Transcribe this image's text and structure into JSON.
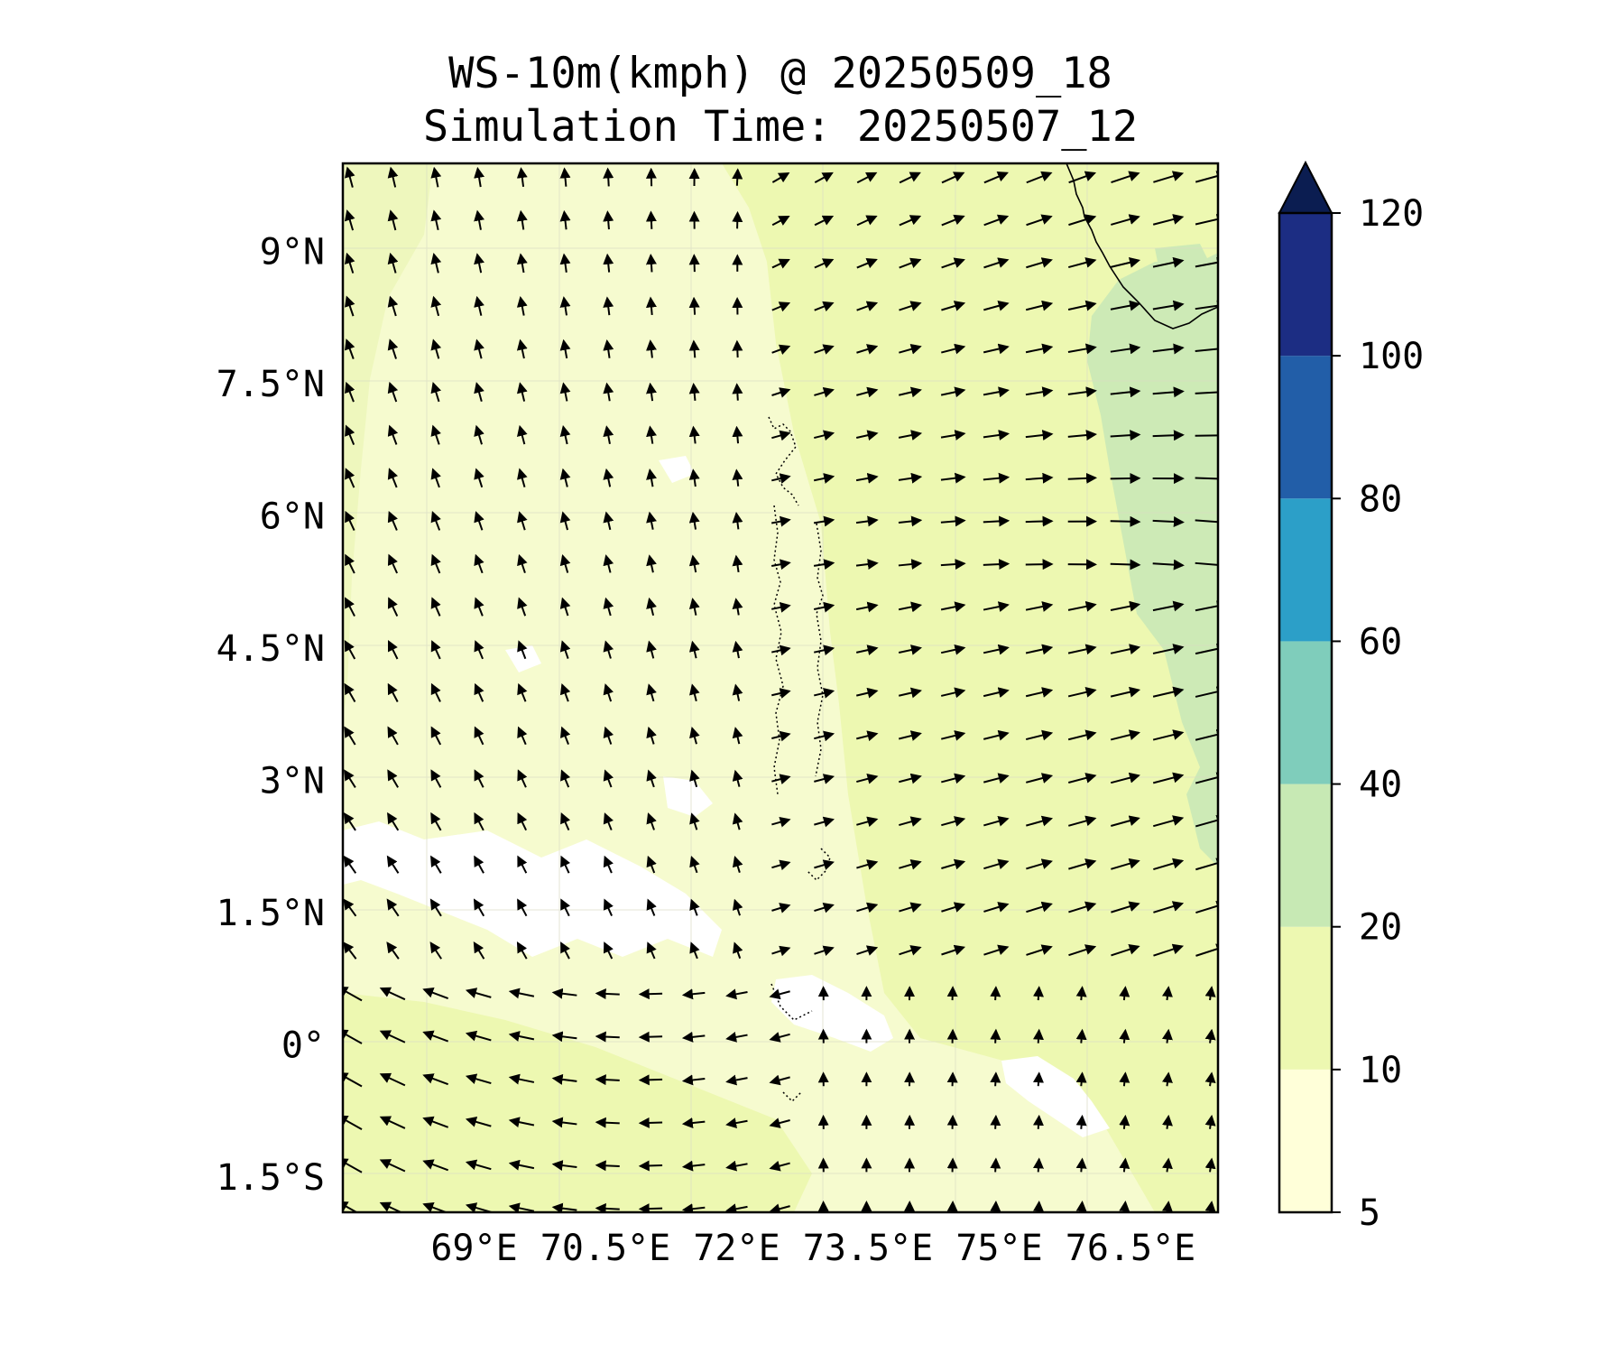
{
  "title": {
    "line1": "WS-10m(kmph) @ 20250509_18",
    "line2": "Simulation Time: 20250507_12"
  },
  "map": {
    "lon_range": [
      67.5,
      77.5
    ],
    "lat_range": [
      -1.9,
      10.0
    ],
    "lon_ticks": [
      {
        "value": 69.0,
        "label": "69°E"
      },
      {
        "value": 70.5,
        "label": "70.5°E"
      },
      {
        "value": 72.0,
        "label": "72°E"
      },
      {
        "value": 73.5,
        "label": "73.5°E"
      },
      {
        "value": 75.0,
        "label": "75°E"
      },
      {
        "value": 76.5,
        "label": "76.5°E"
      }
    ],
    "lat_ticks": [
      {
        "value": 9.0,
        "label": "9°N"
      },
      {
        "value": 7.5,
        "label": "7.5°N"
      },
      {
        "value": 6.0,
        "label": "6°N"
      },
      {
        "value": 4.5,
        "label": "4.5°N"
      },
      {
        "value": 3.0,
        "label": "3°N"
      },
      {
        "value": 1.5,
        "label": "1.5°N"
      },
      {
        "value": 0.0,
        "label": "0°"
      },
      {
        "value": -1.5,
        "label": "1.5°S"
      }
    ],
    "gridlines": true,
    "background_fill": "#f6fbcf",
    "coastline_color": "#000000",
    "vector_color": "#000000"
  },
  "colorbar": {
    "levels": [
      "5",
      "10",
      "20",
      "40",
      "60",
      "80",
      "100",
      "120"
    ],
    "colors": [
      "#ffffd9",
      "#edf8b1",
      "#c7e9b4",
      "#7fcdbb",
      "#2c9fc8",
      "#225ea8",
      "#1c2d83",
      "#0b1d51"
    ],
    "extend": "max",
    "units": "kmph"
  }
}
